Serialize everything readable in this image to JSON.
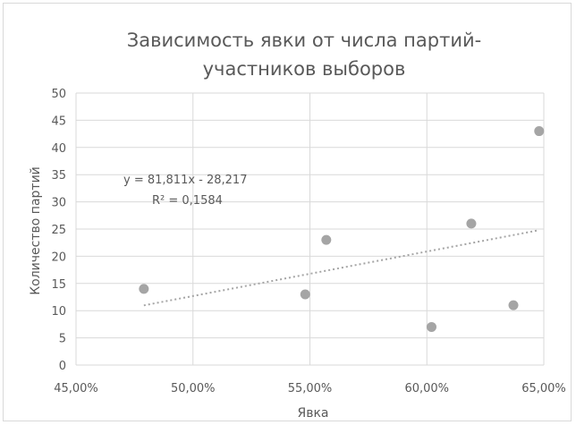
{
  "colors": {
    "grid": "#d9d9d9",
    "point": "#a5a5a5",
    "trend": "#a5a5a5",
    "text": "#595959"
  },
  "chart_data": {
    "type": "scatter",
    "title_line1": "Зависимость явки от числа партий-",
    "title_line2": "участников выборов",
    "xlabel": "Явка",
    "ylabel": "Количество партий",
    "xlim": [
      0.45,
      0.65
    ],
    "ylim": [
      0,
      50
    ],
    "x_ticks": [
      0.45,
      0.5,
      0.55,
      0.6,
      0.65
    ],
    "x_tick_labels": [
      "45,00%",
      "50,00%",
      "55,00%",
      "60,00%",
      "65,00%"
    ],
    "y_ticks": [
      0,
      5,
      10,
      15,
      20,
      25,
      30,
      35,
      40,
      45,
      50
    ],
    "y_tick_labels": [
      "0",
      "5",
      "10",
      "15",
      "20",
      "25",
      "30",
      "35",
      "40",
      "45",
      "50"
    ],
    "grid": "vertical-and-horizontal",
    "legend": "none",
    "points": [
      {
        "x": 0.479,
        "y": 14
      },
      {
        "x": 0.548,
        "y": 13
      },
      {
        "x": 0.557,
        "y": 23
      },
      {
        "x": 0.602,
        "y": 7
      },
      {
        "x": 0.619,
        "y": 26
      },
      {
        "x": 0.637,
        "y": 11
      },
      {
        "x": 0.648,
        "y": 43
      }
    ],
    "trendline": {
      "slope": 81.811,
      "intercept": -28.217,
      "x_range": [
        0.479,
        0.648
      ],
      "style": "dotted"
    },
    "annotation_equation": "y = 81,811x - 28,217",
    "annotation_r2": "R² = 0,1584"
  }
}
